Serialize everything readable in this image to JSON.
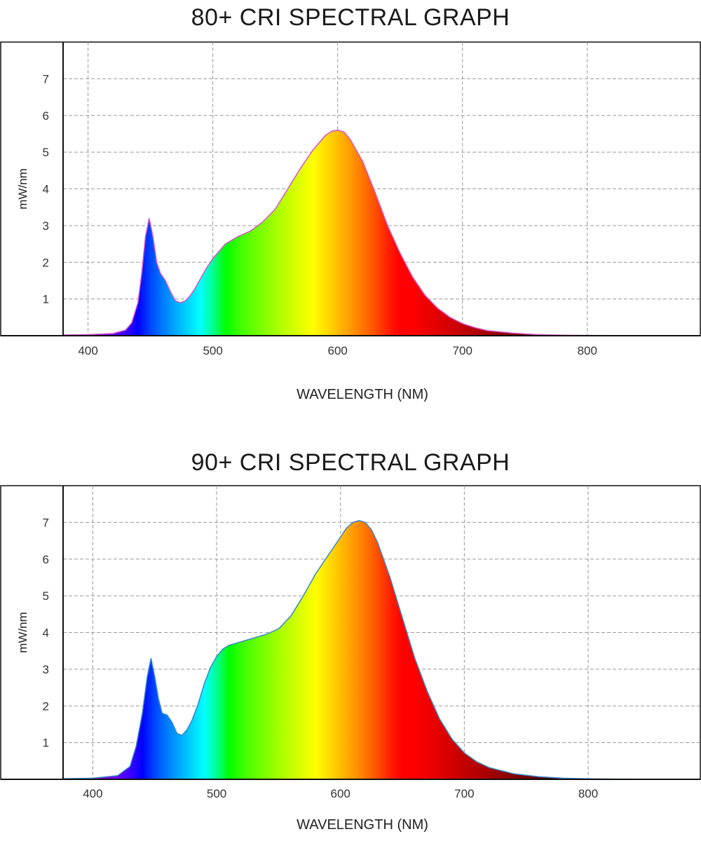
{
  "chart_data": [
    {
      "type": "area",
      "title": "80+ CRI SPECTRAL GRAPH",
      "xlabel": "WAVELENGTH (NM)",
      "ylabel": "mW/nm",
      "xlim": [
        380,
        890
      ],
      "ylim": [
        0,
        8
      ],
      "xticks": [
        400,
        500,
        600,
        700,
        800
      ],
      "yticks": [
        1,
        2,
        3,
        4,
        5,
        6,
        7
      ],
      "grid": true,
      "outline_color": "#d455c8",
      "series": [
        {
          "x": [
            380,
            400,
            420,
            430,
            435,
            440,
            443,
            446,
            449,
            452,
            455,
            458,
            462,
            466,
            470,
            474,
            478,
            482,
            486,
            490,
            495,
            500,
            510,
            520,
            530,
            540,
            550,
            560,
            570,
            580,
            590,
            595,
            600,
            605,
            610,
            620,
            630,
            640,
            650,
            660,
            670,
            680,
            690,
            700,
            710,
            720,
            740,
            760,
            780,
            800,
            820,
            850,
            890
          ],
          "y": [
            0.02,
            0.03,
            0.06,
            0.15,
            0.35,
            0.9,
            1.7,
            2.7,
            3.2,
            2.7,
            2.0,
            1.7,
            1.5,
            1.2,
            0.95,
            0.9,
            0.95,
            1.1,
            1.3,
            1.55,
            1.85,
            2.1,
            2.5,
            2.7,
            2.85,
            3.1,
            3.45,
            4.0,
            4.55,
            5.05,
            5.45,
            5.57,
            5.6,
            5.55,
            5.35,
            4.75,
            3.9,
            3.0,
            2.25,
            1.6,
            1.1,
            0.75,
            0.5,
            0.33,
            0.22,
            0.14,
            0.07,
            0.03,
            0.015,
            0.008,
            0.004,
            0.001,
            0.0
          ]
        }
      ]
    },
    {
      "type": "area",
      "title": "90+ CRI SPECTRAL GRAPH",
      "xlabel": "WAVELENGTH (NM)",
      "ylabel": "mW/nm",
      "xlim": [
        376,
        890
      ],
      "ylim": [
        0,
        8
      ],
      "xticks": [
        400,
        500,
        600,
        700,
        800
      ],
      "yticks": [
        1,
        2,
        3,
        4,
        5,
        6,
        7
      ],
      "grid": true,
      "outline_color": "#3a86c8",
      "series": [
        {
          "x": [
            376,
            400,
            420,
            430,
            435,
            440,
            444,
            447,
            450,
            453,
            456,
            460,
            464,
            468,
            472,
            476,
            480,
            485,
            490,
            495,
            500,
            505,
            510,
            520,
            530,
            540,
            550,
            560,
            570,
            580,
            590,
            600,
            605,
            610,
            615,
            620,
            625,
            630,
            640,
            650,
            660,
            670,
            680,
            690,
            700,
            710,
            720,
            740,
            760,
            780,
            800,
            820,
            850,
            890
          ],
          "y": [
            0.02,
            0.03,
            0.1,
            0.35,
            0.9,
            1.8,
            2.8,
            3.3,
            2.8,
            2.2,
            1.8,
            1.75,
            1.55,
            1.25,
            1.2,
            1.35,
            1.6,
            2.05,
            2.6,
            3.05,
            3.35,
            3.55,
            3.65,
            3.75,
            3.85,
            3.95,
            4.1,
            4.45,
            5.0,
            5.6,
            6.1,
            6.6,
            6.85,
            7.0,
            7.05,
            7.0,
            6.8,
            6.45,
            5.5,
            4.4,
            3.3,
            2.4,
            1.65,
            1.1,
            0.72,
            0.48,
            0.32,
            0.15,
            0.07,
            0.03,
            0.015,
            0.007,
            0.002,
            0.0
          ]
        }
      ]
    }
  ]
}
